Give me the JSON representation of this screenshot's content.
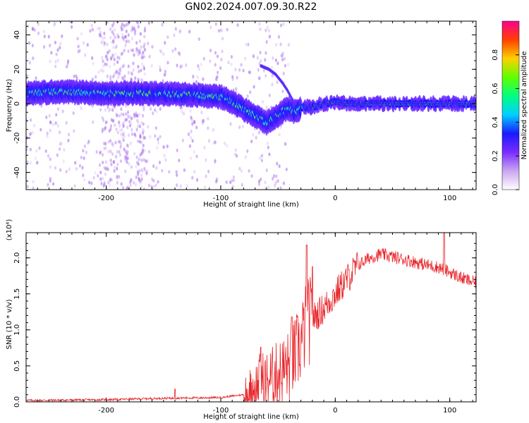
{
  "title": "GN02.2024.007.09.30.R22",
  "chart_data": [
    {
      "type": "heatmap",
      "xlabel": "Height of straight line (km)",
      "ylabel": "Frequency (Hz)",
      "xlim": [
        -270,
        123
      ],
      "ylim": [
        -50,
        48
      ],
      "xticks": [
        -200,
        -100,
        0,
        100
      ],
      "yticks": [
        -40,
        -20,
        0,
        20,
        40
      ],
      "colorbar": {
        "label": "Normalized spectral amplitude",
        "range": [
          0.0,
          1.0
        ],
        "ticks": [
          "0.0",
          "0.2",
          "0.4",
          "0.6",
          "0.8"
        ],
        "colors": [
          "#ffffff",
          "#c9a6f0",
          "#7a2cff",
          "#1a1aff",
          "#00d0ff",
          "#00ff80",
          "#60ff00",
          "#ffd000",
          "#ff4000",
          "#ff0090"
        ]
      },
      "ridge": {
        "x": [
          -270,
          -240,
          -200,
          -160,
          -120,
          -100,
          -90,
          -80,
          -70,
          -60,
          -55,
          -50,
          -45,
          -40,
          -35,
          -30,
          -20,
          -10,
          0,
          10,
          50,
          100,
          123
        ],
        "y": [
          6,
          7,
          6,
          6,
          5,
          4,
          1,
          -3,
          -7,
          -11,
          -9,
          -7,
          -4,
          -3,
          -5,
          -2,
          -2,
          0,
          1,
          0,
          0,
          0,
          0
        ]
      },
      "branch": {
        "x": [
          -65,
          -58,
          -52,
          -46,
          -42,
          -38,
          -36
        ],
        "y": [
          22,
          20,
          17,
          12,
          8,
          3,
          -2
        ]
      }
    },
    {
      "type": "line",
      "xlabel": "Height of straight line (km)",
      "ylabel": "SNR (10 * v/v)",
      "yscale_label": "(x10⁴)",
      "xlim": [
        -270,
        123
      ],
      "ylim": [
        0,
        2.35
      ],
      "xticks": [
        -200,
        -100,
        0,
        100
      ],
      "yticks": [
        0.0,
        0.5,
        1.0,
        1.5,
        2.0
      ],
      "ytick_labels": [
        "0.0",
        "0.5",
        "1.0",
        "1.5",
        "2.0"
      ],
      "series_color": "#e8252a",
      "envelope": {
        "x": [
          -270,
          -200,
          -150,
          -100,
          -80,
          -70,
          -65,
          -60,
          -50,
          -40,
          -30,
          -25,
          -20,
          -10,
          0,
          10,
          20,
          30,
          40,
          60,
          80,
          90,
          100,
          110,
          123
        ],
        "y": [
          0.02,
          0.03,
          0.05,
          0.06,
          0.1,
          0.2,
          0.35,
          0.3,
          0.4,
          0.5,
          0.8,
          1.1,
          1.15,
          1.3,
          1.5,
          1.7,
          1.9,
          2.0,
          2.05,
          1.98,
          1.9,
          1.87,
          1.8,
          1.72,
          1.65
        ]
      },
      "spikes": [
        {
          "x": -140,
          "y": 0.18
        },
        {
          "x": -65,
          "y": 0.76
        },
        {
          "x": -38,
          "y": 1.18
        },
        {
          "x": -25,
          "y": 2.18
        },
        {
          "x": -20,
          "y": 1.88
        },
        {
          "x": 95,
          "y": 2.35
        }
      ]
    }
  ]
}
